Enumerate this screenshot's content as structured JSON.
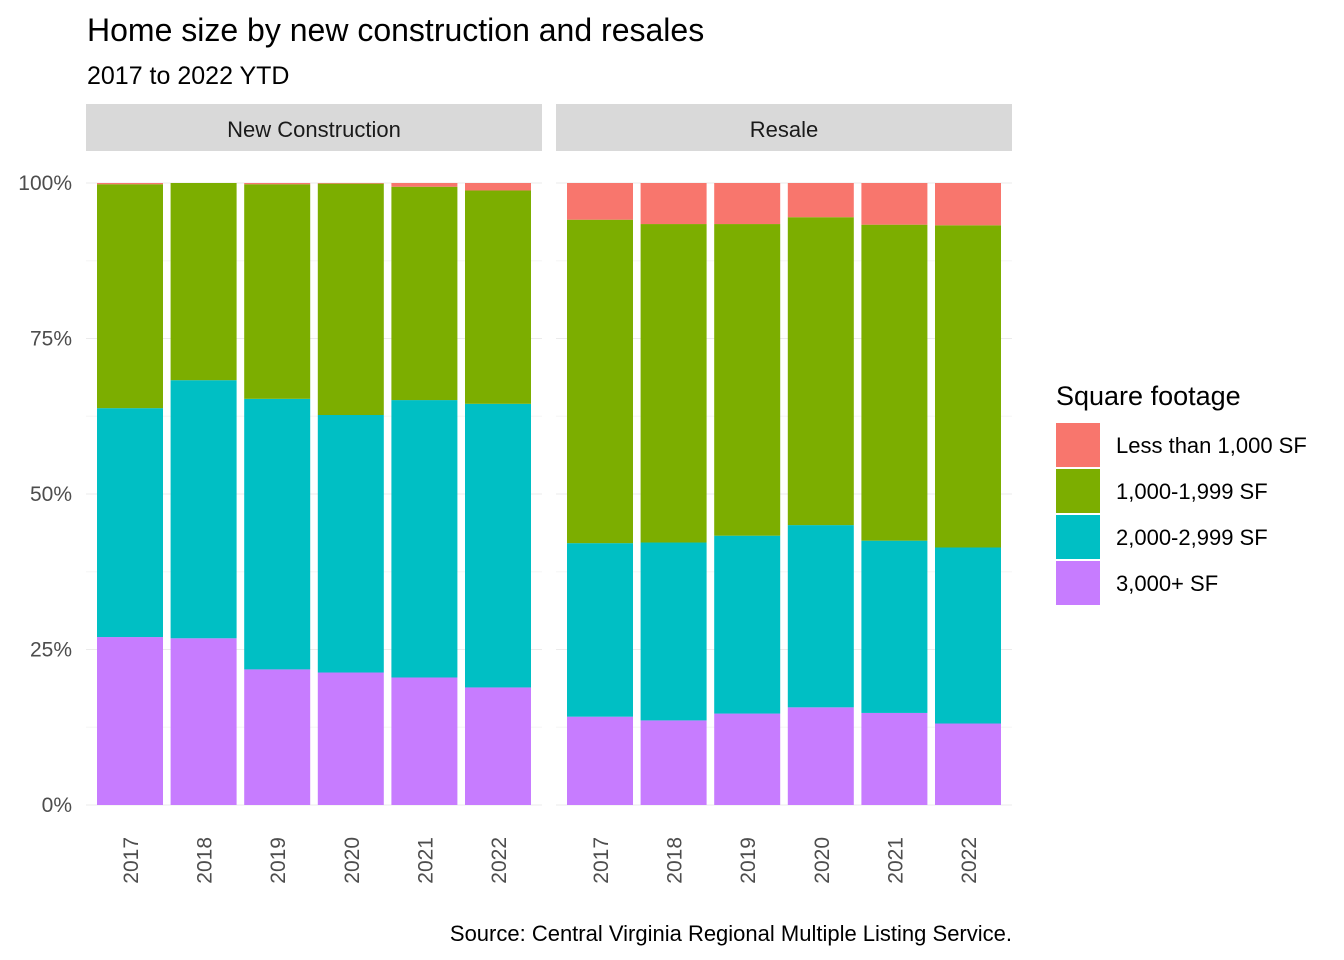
{
  "chart_data": {
    "type": "bar",
    "stacked": "percent",
    "title": "Home size by new construction and resales",
    "subtitle": "2017 to 2022 YTD",
    "caption": "Source: Central Virginia Regional Multiple Listing Service.",
    "categories": [
      "2017",
      "2018",
      "2019",
      "2020",
      "2021",
      "2022"
    ],
    "y_ticks": [
      "0%",
      "25%",
      "50%",
      "75%",
      "100%"
    ],
    "ylim": [
      0,
      100
    ],
    "legend": {
      "title": "Square footage",
      "placement": "right"
    },
    "series_order": [
      "Less than 1,000 SF",
      "1,000-1,999 SF",
      "2,000-2,999 SF",
      "3,000+ SF"
    ],
    "colors": {
      "Less than 1,000 SF": "#F8766D",
      "1,000-1,999 SF": "#7CAE00",
      "2,000-2,999 SF": "#00BFC4",
      "3,000+ SF": "#C77CFF"
    },
    "panels": [
      {
        "label": "New Construction",
        "series": [
          {
            "name": "3,000+ SF",
            "values": [
              27.0,
              26.8,
              21.8,
              21.3,
              20.5,
              18.9
            ]
          },
          {
            "name": "2,000-2,999 SF",
            "values": [
              36.8,
              41.5,
              43.5,
              41.4,
              44.6,
              45.6
            ]
          },
          {
            "name": "1,000-1,999 SF",
            "values": [
              36.0,
              31.7,
              34.5,
              37.2,
              34.3,
              34.3
            ]
          },
          {
            "name": "Less than 1,000 SF",
            "values": [
              0.2,
              0.0,
              0.2,
              0.1,
              0.6,
              1.2
            ]
          }
        ]
      },
      {
        "label": "Resale",
        "series": [
          {
            "name": "3,000+ SF",
            "values": [
              14.2,
              13.6,
              14.7,
              15.7,
              14.8,
              13.1
            ]
          },
          {
            "name": "2,000-2,999 SF",
            "values": [
              27.9,
              28.6,
              28.6,
              29.3,
              27.7,
              28.3
            ]
          },
          {
            "name": "1,000-1,999 SF",
            "values": [
              52.0,
              51.2,
              50.1,
              49.5,
              50.8,
              51.8
            ]
          },
          {
            "name": "Less than 1,000 SF",
            "values": [
              5.9,
              6.6,
              6.6,
              5.5,
              6.7,
              6.8
            ]
          }
        ]
      }
    ]
  }
}
